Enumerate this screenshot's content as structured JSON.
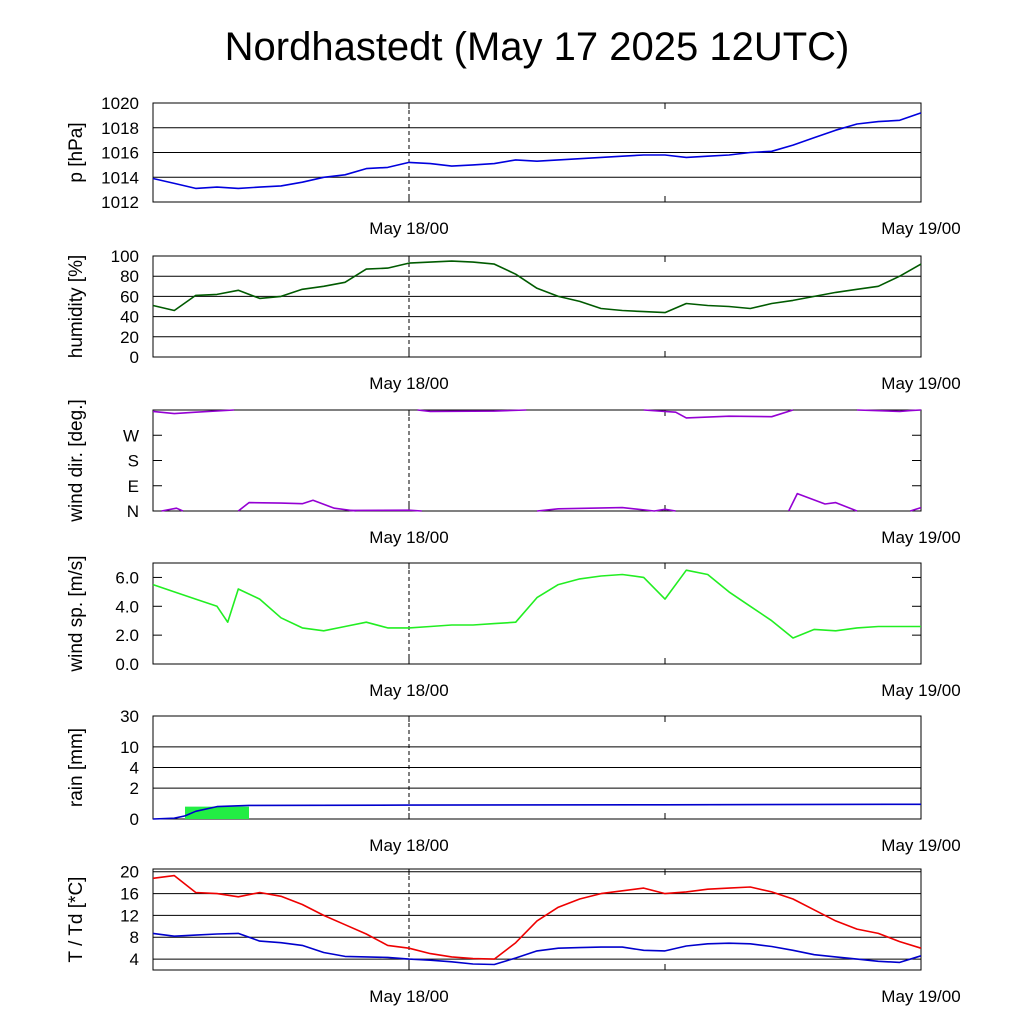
{
  "title": "Nordhastedt (May 17 2025 12UTC)",
  "x_tick_labels": [
    "May 18/00",
    "May 19/00"
  ],
  "colors": {
    "pressure": "#0000dd",
    "humidity": "#005a00",
    "wind_dir": "#9400d3",
    "wind_speed": "#22ee22",
    "rain_bar": "#22ee44",
    "rain_line": "#0000cc",
    "temperature": "#ee0000",
    "dewpoint": "#0000cc"
  },
  "chart_data": [
    {
      "type": "line",
      "ylabel": "p [hPa]",
      "yticks": [
        "1012",
        "1014",
        "1016",
        "1018",
        "1020"
      ],
      "ylim": [
        1012,
        1020
      ],
      "grid": true,
      "x_hours": [
        0,
        1,
        2,
        3,
        4,
        5,
        6,
        7,
        8,
        9,
        10,
        11,
        12,
        13,
        14,
        15,
        16,
        17,
        18,
        19,
        20,
        21,
        22,
        23,
        24,
        25,
        26,
        27,
        28,
        29,
        30,
        31,
        32,
        33,
        34,
        35,
        36
      ],
      "series": [
        {
          "values": [
            1013.9,
            1013.5,
            1013.1,
            1013.2,
            1013.1,
            1013.2,
            1013.3,
            1013.6,
            1014.0,
            1014.2,
            1014.7,
            1014.8,
            1015.2,
            1015.1,
            1014.9,
            1015.0,
            1015.1,
            1015.4,
            1015.3,
            1015.4,
            1015.5,
            1015.6,
            1015.7,
            1015.8,
            1015.8,
            1015.6,
            1015.7,
            1015.8,
            1016.0,
            1016.1,
            1016.6,
            1017.2,
            1017.8,
            1018.3,
            1018.5,
            1018.6,
            1019.2
          ]
        }
      ]
    },
    {
      "type": "line",
      "ylabel": "humidity [%]",
      "yticks": [
        "0",
        "20",
        "40",
        "60",
        "80",
        "100"
      ],
      "ylim": [
        0,
        100
      ],
      "grid": true,
      "x_hours": [
        0,
        1,
        2,
        3,
        4,
        5,
        6,
        7,
        8,
        9,
        10,
        11,
        12,
        13,
        14,
        15,
        16,
        17,
        18,
        19,
        20,
        21,
        22,
        23,
        24,
        25,
        26,
        27,
        28,
        29,
        30,
        31,
        32,
        33,
        34,
        35,
        36
      ],
      "series": [
        {
          "values": [
            51,
            46,
            61,
            62,
            66,
            58,
            60,
            67,
            70,
            74,
            87,
            88,
            93,
            94,
            95,
            94,
            92,
            82,
            68,
            60,
            55,
            48,
            46,
            45,
            44,
            53,
            51,
            50,
            48,
            53,
            56,
            60,
            64,
            67,
            70,
            80,
            92
          ]
        }
      ]
    },
    {
      "type": "line",
      "ylabel": "wind dir. [deg.]",
      "yticks": [
        "N",
        "E",
        "S",
        "W"
      ],
      "ylim": [
        0,
        360
      ],
      "grid": false,
      "series": [
        {
          "segments": [
            {
              "x": [
                0,
                1,
                2,
                3.8
              ],
              "y": [
                355,
                347,
                352,
                360
              ]
            },
            {
              "x": [
                0.4,
                1.1,
                1.4
              ],
              "y": [
                0,
                10,
                0
              ]
            },
            {
              "x": [
                4,
                4.5,
                6,
                7,
                7.5,
                8.5,
                9.5
              ],
              "y": [
                0,
                30,
                28,
                26,
                38,
                10,
                0
              ]
            },
            {
              "x": [
                9.2,
                12,
                12.6
              ],
              "y": [
                2,
                3,
                0
              ]
            },
            {
              "x": [
                12.4,
                13,
                16,
                17.5
              ],
              "y": [
                360,
                355,
                356,
                360
              ]
            },
            {
              "x": [
                18,
                19,
                22,
                23.5
              ],
              "y": [
                0,
                8,
                12,
                0
              ]
            },
            {
              "x": [
                23.5,
                24,
                24.5
              ],
              "y": [
                0,
                6,
                0
              ]
            },
            {
              "x": [
                23,
                24.5,
                25,
                27,
                29,
                30
              ],
              "y": [
                360,
                352,
                332,
                338,
                336,
                360
              ]
            },
            {
              "x": [
                29.8,
                30.2,
                31.5,
                32,
                33
              ],
              "y": [
                0,
                62,
                25,
                30,
                0
              ]
            },
            {
              "x": [
                33,
                35,
                35.5,
                36
              ],
              "y": [
                360,
                355,
                358,
                360
              ]
            },
            {
              "x": [
                35.5,
                36
              ],
              "y": [
                0,
                12
              ]
            }
          ]
        }
      ]
    },
    {
      "type": "line",
      "ylabel": "wind sp. [m/s]",
      "yticks": [
        "0.0",
        "2.0",
        "4.0",
        "6.0"
      ],
      "ylim": [
        0,
        7
      ],
      "grid": false,
      "x_hours": [
        0,
        1,
        2,
        3,
        3.5,
        4,
        5,
        6,
        7,
        8,
        9,
        10,
        11,
        12,
        13,
        14,
        15,
        16,
        17,
        18,
        19,
        20,
        21,
        22,
        23,
        24,
        25,
        26,
        27,
        28,
        29,
        30,
        31,
        32,
        33,
        34,
        35,
        36
      ],
      "series": [
        {
          "values": [
            5.5,
            5.0,
            4.5,
            4.0,
            2.9,
            5.2,
            4.5,
            3.2,
            2.5,
            2.3,
            2.6,
            2.9,
            2.5,
            2.5,
            2.6,
            2.7,
            2.7,
            2.8,
            2.9,
            4.6,
            5.5,
            5.9,
            6.1,
            6.2,
            6.0,
            4.5,
            6.5,
            6.2,
            5.0,
            4.0,
            3.0,
            1.8,
            2.4,
            2.3,
            2.5,
            2.6,
            2.6,
            2.6
          ]
        }
      ]
    },
    {
      "type": "bar",
      "ylabel": "rain [mm]",
      "yticks": [
        "0",
        "2",
        "4",
        "10",
        "30"
      ],
      "ylim": [
        0,
        30
      ],
      "grid": true,
      "bars": [
        {
          "x0": 1.5,
          "x1": 4.5,
          "value": 0.8
        }
      ],
      "series": [
        {
          "x_hours": [
            0,
            1,
            1.5,
            2,
            3,
            4.5,
            12,
            24,
            36
          ],
          "values": [
            0,
            0.05,
            0.2,
            0.5,
            0.8,
            0.88,
            0.9,
            0.92,
            0.95
          ]
        }
      ]
    },
    {
      "type": "line",
      "ylabel": "T / Td [*C]",
      "yticks": [
        "4",
        "8",
        "12",
        "16",
        "20"
      ],
      "ylim": [
        2,
        20.5
      ],
      "grid": true,
      "x_hours": [
        0,
        1,
        2,
        3,
        4,
        5,
        6,
        7,
        8,
        9,
        10,
        11,
        12,
        13,
        14,
        15,
        16,
        17,
        18,
        19,
        20,
        21,
        22,
        23,
        24,
        25,
        26,
        27,
        28,
        29,
        30,
        31,
        32,
        33,
        34,
        35,
        36
      ],
      "series": [
        {
          "name": "T",
          "values": [
            18.8,
            19.3,
            16.2,
            16.0,
            15.4,
            16.2,
            15.5,
            14.0,
            12.0,
            10.3,
            8.6,
            6.5,
            6.0,
            5.0,
            4.4,
            4.1,
            4.0,
            7.0,
            11.0,
            13.5,
            15.0,
            16.0,
            16.5,
            17.0,
            16.0,
            16.3,
            16.8,
            17.0,
            17.2,
            16.3,
            15.0,
            13.0,
            11.0,
            9.5,
            8.7,
            7.2,
            6.0
          ]
        },
        {
          "name": "Td",
          "values": [
            8.7,
            8.2,
            8.4,
            8.6,
            8.7,
            7.3,
            7.0,
            6.5,
            5.2,
            4.5,
            4.4,
            4.3,
            4.0,
            3.8,
            3.5,
            3.1,
            3.0,
            4.2,
            5.5,
            6.0,
            6.1,
            6.2,
            6.2,
            5.6,
            5.5,
            6.4,
            6.8,
            6.9,
            6.8,
            6.3,
            5.6,
            4.8,
            4.4,
            4.0,
            3.6,
            3.4,
            4.6
          ]
        }
      ]
    }
  ]
}
